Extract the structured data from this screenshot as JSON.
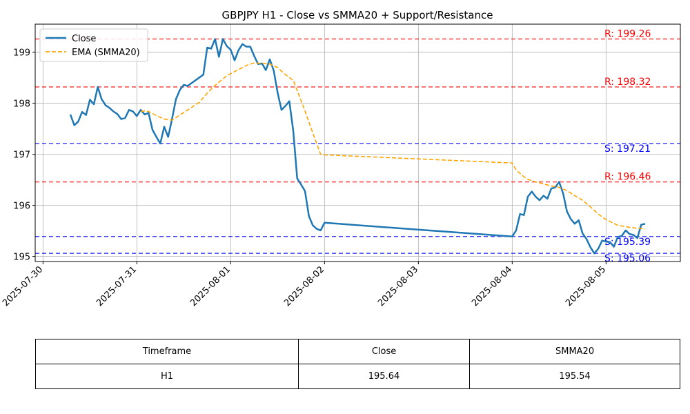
{
  "chart_data": {
    "type": "line",
    "title": "GBPJPY H1 - Close vs SMMA20 + Support/Resistance",
    "xlabel": "",
    "ylabel": "",
    "x_ticks": [
      "2025-07-30",
      "2025-07-31",
      "2025-08-01",
      "2025-08-02",
      "2025-08-03",
      "2025-08-04",
      "2025-08-05"
    ],
    "y_ticks": [
      "195",
      "196",
      "197",
      "198",
      "199"
    ],
    "ylim": [
      194.9,
      199.55
    ],
    "xlim": [
      "2025-07-29 22:00",
      "2025-08-05 19:00"
    ],
    "grid": true,
    "legend_placement": "top-left",
    "series": [
      {
        "name": "Close",
        "color": "#1f77b4",
        "style": "solid",
        "points": [
          [
            "2025-07-30 07:00",
            197.78
          ],
          [
            "2025-07-30 08:00",
            197.57
          ],
          [
            "2025-07-30 09:00",
            197.64
          ],
          [
            "2025-07-30 10:00",
            197.83
          ],
          [
            "2025-07-30 11:00",
            197.77
          ],
          [
            "2025-07-30 12:00",
            198.07
          ],
          [
            "2025-07-30 13:00",
            197.98
          ],
          [
            "2025-07-30 14:00",
            198.32
          ],
          [
            "2025-07-30 15:00",
            198.08
          ],
          [
            "2025-07-30 16:00",
            197.96
          ],
          [
            "2025-07-30 17:00",
            197.91
          ],
          [
            "2025-07-30 18:00",
            197.84
          ],
          [
            "2025-07-30 19:00",
            197.79
          ],
          [
            "2025-07-30 20:00",
            197.69
          ],
          [
            "2025-07-30 21:00",
            197.71
          ],
          [
            "2025-07-30 22:00",
            197.87
          ],
          [
            "2025-07-30 23:00",
            197.84
          ],
          [
            "2025-07-31 00:00",
            197.75
          ],
          [
            "2025-07-31 01:00",
            197.87
          ],
          [
            "2025-07-31 02:00",
            197.78
          ],
          [
            "2025-07-31 03:00",
            197.81
          ],
          [
            "2025-07-31 04:00",
            197.48
          ],
          [
            "2025-07-31 05:00",
            197.34
          ],
          [
            "2025-07-31 06:00",
            197.21
          ],
          [
            "2025-07-31 07:00",
            197.54
          ],
          [
            "2025-07-31 08:00",
            197.34
          ],
          [
            "2025-07-31 09:00",
            197.69
          ],
          [
            "2025-07-31 10:00",
            198.08
          ],
          [
            "2025-07-31 11:00",
            198.26
          ],
          [
            "2025-07-31 12:00",
            198.36
          ],
          [
            "2025-07-31 13:00",
            198.34
          ],
          [
            "2025-07-31 17:00",
            198.56
          ],
          [
            "2025-07-31 18:00",
            199.09
          ],
          [
            "2025-07-31 19:00",
            199.07
          ],
          [
            "2025-07-31 20:00",
            199.26
          ],
          [
            "2025-07-31 21:00",
            198.91
          ],
          [
            "2025-07-31 22:00",
            199.26
          ],
          [
            "2025-07-31 23:00",
            199.12
          ],
          [
            "2025-08-01 00:00",
            199.05
          ],
          [
            "2025-08-01 01:00",
            198.84
          ],
          [
            "2025-08-01 02:00",
            199.04
          ],
          [
            "2025-08-01 03:00",
            199.16
          ],
          [
            "2025-08-01 04:00",
            199.11
          ],
          [
            "2025-08-01 05:00",
            199.11
          ],
          [
            "2025-08-01 06:00",
            198.93
          ],
          [
            "2025-08-01 07:00",
            198.77
          ],
          [
            "2025-08-01 08:00",
            198.78
          ],
          [
            "2025-08-01 09:00",
            198.65
          ],
          [
            "2025-08-01 10:00",
            198.86
          ],
          [
            "2025-08-01 11:00",
            198.64
          ],
          [
            "2025-08-01 12:00",
            198.21
          ],
          [
            "2025-08-01 13:00",
            197.87
          ],
          [
            "2025-08-01 14:00",
            197.95
          ],
          [
            "2025-08-01 15:00",
            198.04
          ],
          [
            "2025-08-01 16:00",
            197.46
          ],
          [
            "2025-08-01 17:00",
            196.53
          ],
          [
            "2025-08-01 18:00",
            196.41
          ],
          [
            "2025-08-01 19:00",
            196.28
          ],
          [
            "2025-08-01 20:00",
            195.79
          ],
          [
            "2025-08-01 21:00",
            195.61
          ],
          [
            "2025-08-01 22:00",
            195.54
          ],
          [
            "2025-08-01 23:00",
            195.51
          ],
          [
            "2025-08-02 00:00",
            195.66
          ],
          [
            "2025-08-04 00:00",
            195.39
          ],
          [
            "2025-08-04 01:00",
            195.51
          ],
          [
            "2025-08-04 02:00",
            195.83
          ],
          [
            "2025-08-04 03:00",
            195.81
          ],
          [
            "2025-08-04 04:00",
            196.17
          ],
          [
            "2025-08-04 05:00",
            196.27
          ],
          [
            "2025-08-04 06:00",
            196.17
          ],
          [
            "2025-08-04 07:00",
            196.1
          ],
          [
            "2025-08-04 08:00",
            196.19
          ],
          [
            "2025-08-04 09:00",
            196.13
          ],
          [
            "2025-08-04 10:00",
            196.33
          ],
          [
            "2025-08-04 11:00",
            196.35
          ],
          [
            "2025-08-04 12:00",
            196.46
          ],
          [
            "2025-08-04 13:00",
            196.24
          ],
          [
            "2025-08-04 14:00",
            195.88
          ],
          [
            "2025-08-04 15:00",
            195.73
          ],
          [
            "2025-08-04 16:00",
            195.64
          ],
          [
            "2025-08-04 17:00",
            195.71
          ],
          [
            "2025-08-04 18:00",
            195.45
          ],
          [
            "2025-08-04 19:00",
            195.34
          ],
          [
            "2025-08-04 20:00",
            195.18
          ],
          [
            "2025-08-04 21:00",
            195.06
          ],
          [
            "2025-08-04 22:00",
            195.15
          ],
          [
            "2025-08-04 23:00",
            195.31
          ],
          [
            "2025-08-05 00:00",
            195.29
          ],
          [
            "2025-08-05 01:00",
            195.28
          ],
          [
            "2025-08-05 02:00",
            195.19
          ],
          [
            "2025-08-05 03:00",
            195.38
          ],
          [
            "2025-08-05 04:00",
            195.4
          ],
          [
            "2025-08-05 05:00",
            195.51
          ],
          [
            "2025-08-05 06:00",
            195.44
          ],
          [
            "2025-08-05 07:00",
            195.42
          ],
          [
            "2025-08-05 08:00",
            195.36
          ],
          [
            "2025-08-05 09:00",
            195.62
          ],
          [
            "2025-08-05 10:00",
            195.64
          ]
        ]
      },
      {
        "name": "EMA (SMMA20)",
        "color": "#ffa500",
        "style": "dashed",
        "points": [
          [
            "2025-07-31 01:00",
            197.84
          ],
          [
            "2025-07-31 02:00",
            197.85
          ],
          [
            "2025-07-31 03:00",
            197.84
          ],
          [
            "2025-07-31 05:00",
            197.76
          ],
          [
            "2025-07-31 07:00",
            197.69
          ],
          [
            "2025-07-31 09:00",
            197.67
          ],
          [
            "2025-07-31 11:00",
            197.77
          ],
          [
            "2025-07-31 13:00",
            197.87
          ],
          [
            "2025-07-31 16:00",
            198.02
          ],
          [
            "2025-07-31 18:00",
            198.2
          ],
          [
            "2025-07-31 20:00",
            198.35
          ],
          [
            "2025-07-31 23:00",
            198.54
          ],
          [
            "2025-08-01 01:00",
            198.62
          ],
          [
            "2025-08-01 04:00",
            198.74
          ],
          [
            "2025-08-01 06:00",
            198.79
          ],
          [
            "2025-08-01 08:00",
            198.78
          ],
          [
            "2025-08-01 10:00",
            198.77
          ],
          [
            "2025-08-01 12:00",
            198.7
          ],
          [
            "2025-08-01 14:00",
            198.56
          ],
          [
            "2025-08-01 16:00",
            198.45
          ],
          [
            "2025-08-01 17:00",
            198.25
          ],
          [
            "2025-08-01 19:00",
            197.85
          ],
          [
            "2025-08-01 21:00",
            197.42
          ],
          [
            "2025-08-01 23:00",
            197.0
          ],
          [
            "2025-08-02 00:00",
            196.99
          ],
          [
            "2025-08-04 00:00",
            196.83
          ],
          [
            "2025-08-04 01:00",
            196.69
          ],
          [
            "2025-08-04 03:00",
            196.56
          ],
          [
            "2025-08-04 04:00",
            196.51
          ],
          [
            "2025-08-04 06:00",
            196.46
          ],
          [
            "2025-08-04 08:00",
            196.42
          ],
          [
            "2025-08-04 10:00",
            196.38
          ],
          [
            "2025-08-04 12:00",
            196.35
          ],
          [
            "2025-08-04 14:00",
            196.29
          ],
          [
            "2025-08-04 16:00",
            196.19
          ],
          [
            "2025-08-04 18:00",
            196.1
          ],
          [
            "2025-08-04 20:00",
            195.97
          ],
          [
            "2025-08-04 22:00",
            195.83
          ],
          [
            "2025-08-05 00:00",
            195.72
          ],
          [
            "2025-08-05 03:00",
            195.61
          ],
          [
            "2025-08-05 06:00",
            195.57
          ],
          [
            "2025-08-05 08:00",
            195.55
          ],
          [
            "2025-08-05 10:00",
            195.54
          ]
        ]
      }
    ],
    "levels": [
      {
        "kind": "R",
        "value": 199.26,
        "label": "R: 199.26",
        "color": "#ff0000"
      },
      {
        "kind": "R",
        "value": 198.32,
        "label": "R: 198.32",
        "color": "#ff0000"
      },
      {
        "kind": "S",
        "value": 197.21,
        "label": "S: 197.21",
        "color": "#0000ff"
      },
      {
        "kind": "R",
        "value": 196.46,
        "label": "R: 196.46",
        "color": "#ff0000"
      },
      {
        "kind": "S",
        "value": 195.39,
        "label": "S: 195.39",
        "color": "#0000ff"
      },
      {
        "kind": "S",
        "value": 195.06,
        "label": "S: 195.06",
        "color": "#0000ff"
      }
    ]
  },
  "table": {
    "headers": [
      "Timeframe",
      "Close",
      "SMMA20"
    ],
    "row": [
      "H1",
      "195.64",
      "195.54"
    ]
  }
}
